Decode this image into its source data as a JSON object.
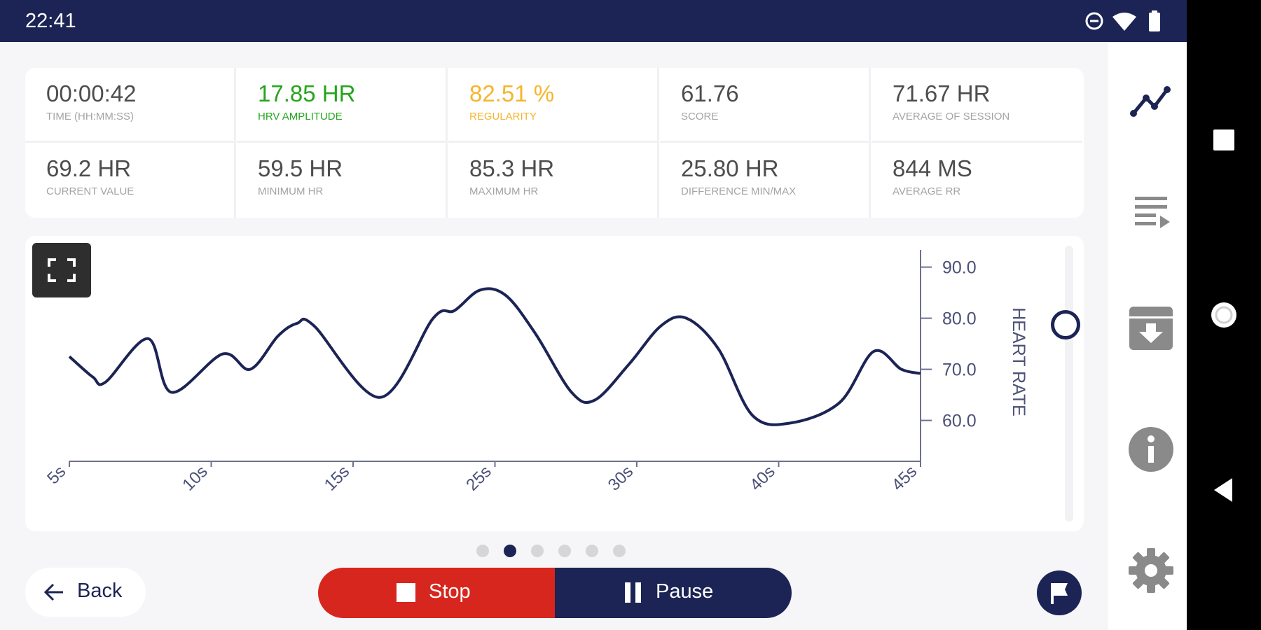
{
  "status_bar": {
    "time": "22:41",
    "icons": [
      "do-not-disturb-icon",
      "wifi-icon",
      "battery-icon"
    ]
  },
  "stats": [
    {
      "value": "00:00:42",
      "label": "TIME (HH:MM:SS)",
      "color": "default"
    },
    {
      "value": "17.85 HR",
      "label": "HRV AMPLITUDE",
      "color": "green"
    },
    {
      "value": "82.51 %",
      "label": "REGULARITY",
      "color": "orange"
    },
    {
      "value": "61.76",
      "label": "SCORE",
      "color": "default"
    },
    {
      "value": "71.67 HR",
      "label": "AVERAGE OF SESSION",
      "color": "default"
    },
    {
      "value": "69.2 HR",
      "label": "CURRENT VALUE",
      "color": "default"
    },
    {
      "value": "59.5 HR",
      "label": "MINIMUM HR",
      "color": "default"
    },
    {
      "value": "85.3 HR",
      "label": "MAXIMUM HR",
      "color": "default"
    },
    {
      "value": "25.80 HR",
      "label": "DIFFERENCE MIN/MAX",
      "color": "default"
    },
    {
      "value": "844 MS",
      "label": "AVERAGE RR",
      "color": "default"
    }
  ],
  "chart_data": {
    "type": "line",
    "ylabel": "HEART RATE",
    "xlabel": "",
    "x_ticks": [
      "5s",
      "10s",
      "15s",
      "25s",
      "30s",
      "40s",
      "45s"
    ],
    "y_ticks": [
      "90.0",
      "80.0",
      "70.0",
      "60.0"
    ],
    "xlim": [
      5,
      45
    ],
    "ylim": [
      52,
      92
    ],
    "y_axis_side": "right",
    "series": [
      {
        "color": "#1b2454",
        "x": [
          5,
          6.1,
          6.7,
          8.7,
          9.8,
          12.2,
          13.5,
          14.8,
          15.7,
          16.5,
          19.6,
          22.1,
          23.1,
          24.3,
          25.5,
          26.9,
          28.6,
          29.7,
          31.3,
          32.8,
          34.0,
          35.5,
          37.1,
          38.9,
          41.2,
          42.8,
          44.1,
          45.0
        ],
        "y": [
          72.5,
          68.5,
          67.5,
          76.0,
          65.5,
          73.0,
          70.0,
          76.5,
          79.0,
          78.5,
          64.5,
          80.0,
          81.5,
          85.5,
          84.5,
          77.0,
          65.5,
          64.0,
          71.0,
          78.5,
          80.0,
          74.0,
          61.0,
          59.5,
          63.5,
          73.5,
          70.0,
          69.2
        ]
      }
    ]
  },
  "pager": {
    "count": 6,
    "active_index": 1
  },
  "controls": {
    "back_label": "Back",
    "stop_label": "Stop",
    "pause_label": "Pause"
  },
  "colors": {
    "navy": "#1b2454",
    "red": "#d7261e",
    "green": "#25a51c",
    "orange": "#f5b52e"
  },
  "sidebar": [
    "chart-line-icon",
    "playlist-icon",
    "download-box-icon",
    "info-icon",
    "settings-icon"
  ],
  "system_nav": [
    "recents-icon",
    "home-icon",
    "back-triangle-icon"
  ]
}
